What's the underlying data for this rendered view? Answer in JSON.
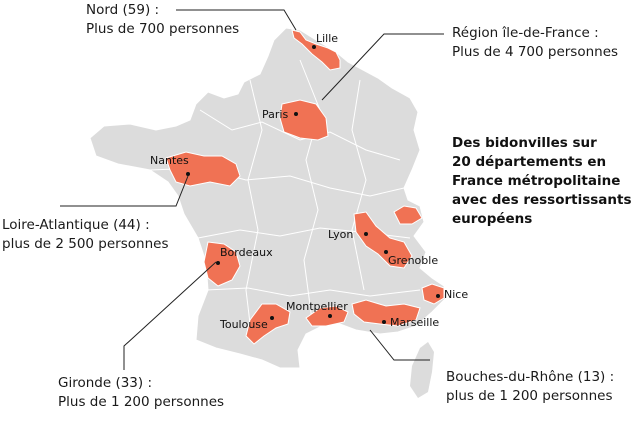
{
  "headline": [
    "Des bidonvilles sur",
    "20 départements en",
    "France métropolitaine",
    "avec des ressortissants",
    "européens"
  ],
  "callouts": {
    "nord": {
      "line1": "Nord (59) :",
      "line2": "Plus de 700 personnes"
    },
    "idf": {
      "line1": "Région île-de-France :",
      "line2": "Plus de 4 700 personnes"
    },
    "loire": {
      "line1": "Loire-Atlantique (44) :",
      "line2": "plus de 2 500 personnes"
    },
    "gironde": {
      "line1": "Gironde (33) :",
      "line2": "Plus de 1 200 personnes"
    },
    "bdr": {
      "line1": "Bouches-du-Rhône (13) :",
      "line2": "plus de 1 200 personnes"
    }
  },
  "cities": {
    "lille": "Lille",
    "paris": "Paris",
    "nantes": "Nantes",
    "bordeaux": "Bordeaux",
    "lyon": "Lyon",
    "grenoble": "Grenoble",
    "nice": "Nice",
    "marseille": "Marseille",
    "montpellier": "Montpellier",
    "toulouse": "Toulouse"
  },
  "colors": {
    "land": "#dcdcdc",
    "border": "#ffffff",
    "highlight": "#f07254",
    "leader": "#222222"
  }
}
